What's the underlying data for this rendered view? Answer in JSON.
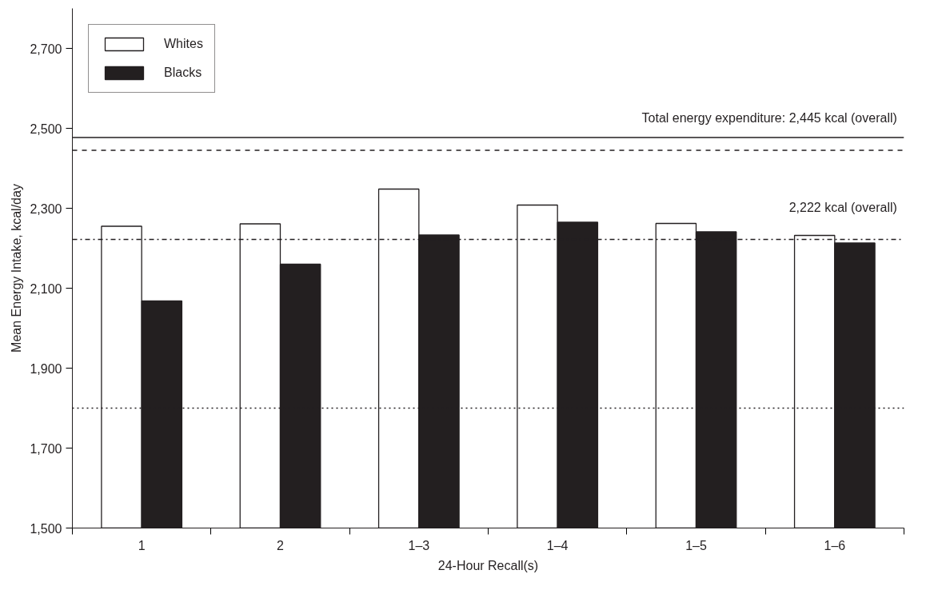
{
  "chart_data": {
    "type": "bar",
    "xlabel": "24-Hour Recall(s)",
    "ylabel": "Mean Energy Intake, kcal/day",
    "categories": [
      "1",
      "2",
      "1–3",
      "1–4",
      "1–5",
      "1–6"
    ],
    "series": [
      {
        "name": "Whites",
        "color": "#ffffff",
        "values": [
          2255,
          2261,
          2348,
          2308,
          2262,
          2232
        ]
      },
      {
        "name": "Blacks",
        "color": "#231f20",
        "values": [
          2068,
          2160,
          2233,
          2265,
          2241,
          2213
        ]
      }
    ],
    "ylim": [
      1500,
      2800
    ],
    "yticks": [
      {
        "value": 1500,
        "label": "1,500"
      },
      {
        "value": 1700,
        "label": "1,700"
      },
      {
        "value": 1900,
        "label": "1,900"
      },
      {
        "value": 2100,
        "label": "2,100"
      },
      {
        "value": 2300,
        "label": "2,300"
      },
      {
        "value": 2500,
        "label": "2,500"
      },
      {
        "value": 2700,
        "label": "2,700"
      }
    ],
    "ref_lines": [
      {
        "axis": "y",
        "value": 2477,
        "line_style": "solid",
        "color": "#231f20"
      },
      {
        "axis": "y",
        "value": 2445,
        "line_style": "dashed",
        "color": "#231f20",
        "label": "Total energy expenditure: 2,445 kcal (overall)"
      },
      {
        "axis": "y",
        "value": 2222,
        "line_style": "dashdot",
        "color": "#231f20",
        "label": "2,222 kcal (overall)"
      },
      {
        "axis": "y",
        "value": 1800,
        "line_style": "dotted",
        "color": "#231f20"
      }
    ],
    "grid": false,
    "legend": "top left"
  }
}
